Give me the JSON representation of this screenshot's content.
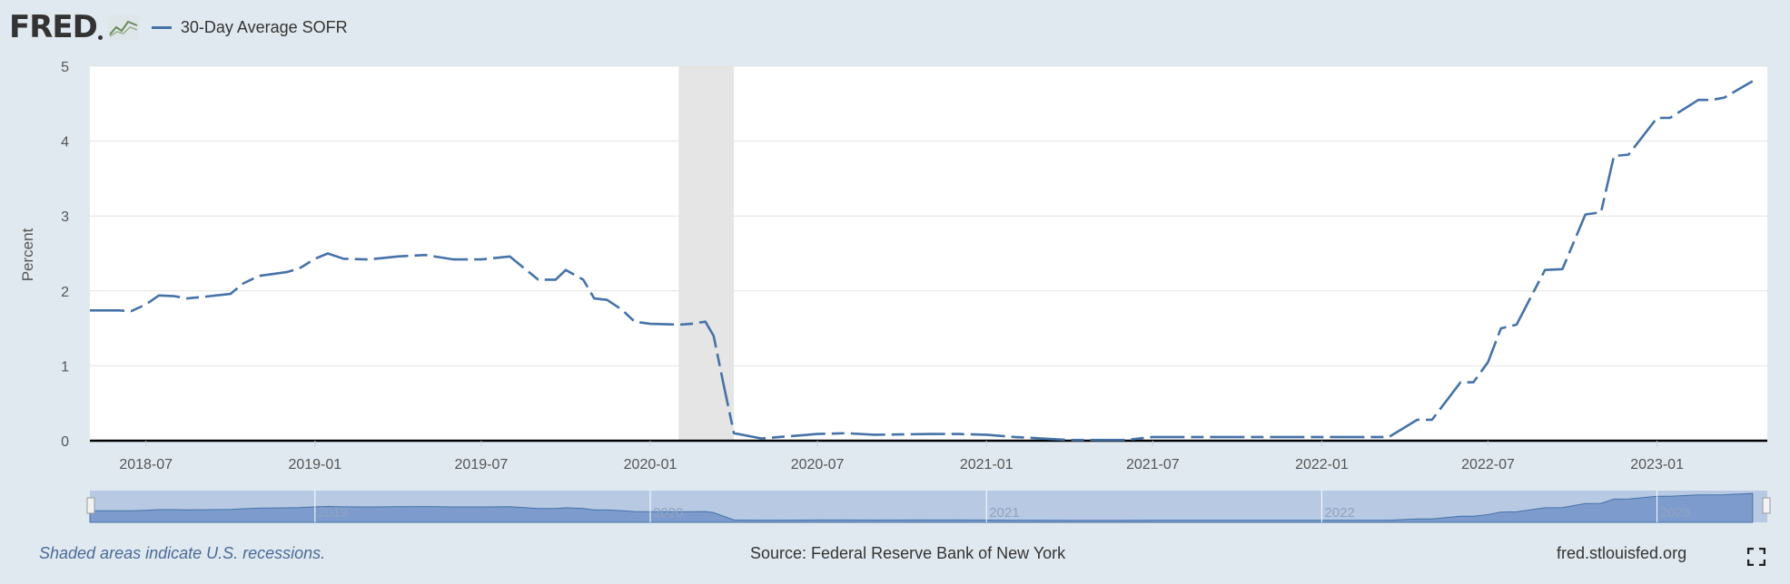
{
  "header": {
    "logo_text": "FRED",
    "logo_icon": "chart-trend-icon",
    "legend_label": "30-Day Average SOFR",
    "series_color": "#4572a7"
  },
  "footer": {
    "recession_note": "Shaded areas indicate U.S. recessions.",
    "source": "Source: Federal Reserve Bank of New York",
    "site": "fred.stlouisfed.org",
    "fullscreen_icon": "fullscreen-icon"
  },
  "chart_data": {
    "type": "line",
    "title": "",
    "ylabel": "Percent",
    "xlabel": "",
    "ylim": [
      0,
      5
    ],
    "yticks": [
      "0",
      "1",
      "2",
      "3",
      "4",
      "5"
    ],
    "xlim": [
      "2018-05-01",
      "2023-05-01"
    ],
    "xticks": [
      "2018-07",
      "2019-01",
      "2019-07",
      "2020-01",
      "2020-07",
      "2021-01",
      "2021-07",
      "2022-01",
      "2022-07",
      "2023-01"
    ],
    "grid": true,
    "legend_position": "top-left",
    "recession": {
      "start": "2020-02-01",
      "end": "2020-04-01",
      "color": "#e5e5e5"
    },
    "navigator_labels": [
      "2019",
      "2020",
      "2021",
      "2022",
      "2023"
    ],
    "series": [
      {
        "name": "30-Day Average SOFR",
        "color": "#4572a7",
        "points": [
          [
            "2018-05-01",
            1.74
          ],
          [
            "2018-06-01",
            1.74
          ],
          [
            "2018-06-15",
            1.73
          ],
          [
            "2018-07-01",
            1.82
          ],
          [
            "2018-07-15",
            1.94
          ],
          [
            "2018-08-01",
            1.93
          ],
          [
            "2018-08-15",
            1.9
          ],
          [
            "2018-09-01",
            1.92
          ],
          [
            "2018-10-01",
            1.96
          ],
          [
            "2018-10-15",
            2.1
          ],
          [
            "2018-11-01",
            2.2
          ],
          [
            "2018-12-01",
            2.25
          ],
          [
            "2018-12-15",
            2.3
          ],
          [
            "2019-01-01",
            2.43
          ],
          [
            "2019-01-15",
            2.5
          ],
          [
            "2019-02-01",
            2.43
          ],
          [
            "2019-03-01",
            2.42
          ],
          [
            "2019-04-01",
            2.46
          ],
          [
            "2019-05-01",
            2.48
          ],
          [
            "2019-06-01",
            2.42
          ],
          [
            "2019-07-01",
            2.42
          ],
          [
            "2019-08-01",
            2.46
          ],
          [
            "2019-09-01",
            2.15
          ],
          [
            "2019-09-20",
            2.15
          ],
          [
            "2019-10-01",
            2.28
          ],
          [
            "2019-10-20",
            2.15
          ],
          [
            "2019-11-01",
            1.9
          ],
          [
            "2019-11-15",
            1.88
          ],
          [
            "2019-12-01",
            1.75
          ],
          [
            "2019-12-15",
            1.59
          ],
          [
            "2020-01-01",
            1.56
          ],
          [
            "2020-02-01",
            1.55
          ],
          [
            "2020-02-15",
            1.56
          ],
          [
            "2020-03-01",
            1.59
          ],
          [
            "2020-03-10",
            1.4
          ],
          [
            "2020-03-20",
            0.8
          ],
          [
            "2020-04-01",
            0.1
          ],
          [
            "2020-05-01",
            0.03
          ],
          [
            "2020-06-01",
            0.06
          ],
          [
            "2020-07-01",
            0.09
          ],
          [
            "2020-08-01",
            0.1
          ],
          [
            "2020-09-01",
            0.08
          ],
          [
            "2020-11-01",
            0.09
          ],
          [
            "2020-12-01",
            0.09
          ],
          [
            "2021-01-01",
            0.08
          ],
          [
            "2021-02-01",
            0.05
          ],
          [
            "2021-04-01",
            0.01
          ],
          [
            "2021-06-01",
            0.01
          ],
          [
            "2021-07-01",
            0.05
          ],
          [
            "2022-03-15",
            0.05
          ],
          [
            "2022-04-15",
            0.28
          ],
          [
            "2022-05-01",
            0.28
          ],
          [
            "2022-06-01",
            0.78
          ],
          [
            "2022-06-15",
            0.78
          ],
          [
            "2022-07-01",
            1.05
          ],
          [
            "2022-07-15",
            1.5
          ],
          [
            "2022-08-01",
            1.55
          ],
          [
            "2022-09-01",
            2.28
          ],
          [
            "2022-09-20",
            2.29
          ],
          [
            "2022-10-15",
            3.02
          ],
          [
            "2022-11-01",
            3.05
          ],
          [
            "2022-11-15",
            3.8
          ],
          [
            "2022-12-01",
            3.82
          ],
          [
            "2023-01-01",
            4.31
          ],
          [
            "2023-01-15",
            4.31
          ],
          [
            "2023-02-15",
            4.55
          ],
          [
            "2023-03-01",
            4.55
          ],
          [
            "2023-03-15",
            4.58
          ],
          [
            "2023-04-15",
            4.8
          ]
        ]
      }
    ]
  }
}
